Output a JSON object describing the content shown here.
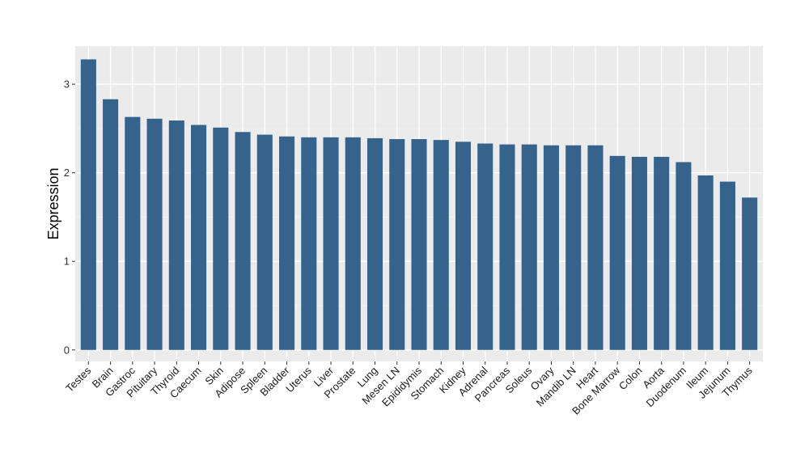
{
  "chart_data": {
    "type": "bar",
    "title": "",
    "xlabel": "",
    "ylabel": "Expression",
    "ylim": [
      -0.13,
      3.43
    ],
    "yticks": [
      0,
      1,
      2,
      3
    ],
    "grid": true,
    "legend": "none",
    "colors": {
      "bar": "#35638c",
      "panel": "#ebebeb",
      "grid_major": "#ffffff",
      "grid_minor": "#f3f3f3"
    },
    "categories": [
      "Testes",
      "Brain",
      "Gastroc",
      "Pituitary",
      "Thyroid",
      "Caecum",
      "Skin",
      "Adipose",
      "Spleen",
      "Bladder",
      "Uterus",
      "Liver",
      "Prostate",
      "Lung",
      "Mesen LN",
      "Epididymis",
      "Stomach",
      "Kidney",
      "Adrenal",
      "Pancreas",
      "Soleus",
      "Ovary",
      "Mandib LN",
      "Heart",
      "Bone Marrow",
      "Colon",
      "Aorta",
      "Duodenum",
      "Ileum",
      "Jejunum",
      "Thymus"
    ],
    "values": [
      3.28,
      2.83,
      2.63,
      2.61,
      2.59,
      2.54,
      2.51,
      2.46,
      2.43,
      2.41,
      2.4,
      2.4,
      2.4,
      2.39,
      2.38,
      2.38,
      2.37,
      2.35,
      2.33,
      2.32,
      2.32,
      2.31,
      2.31,
      2.31,
      2.19,
      2.18,
      2.18,
      2.12,
      1.97,
      1.9,
      1.72
    ]
  }
}
